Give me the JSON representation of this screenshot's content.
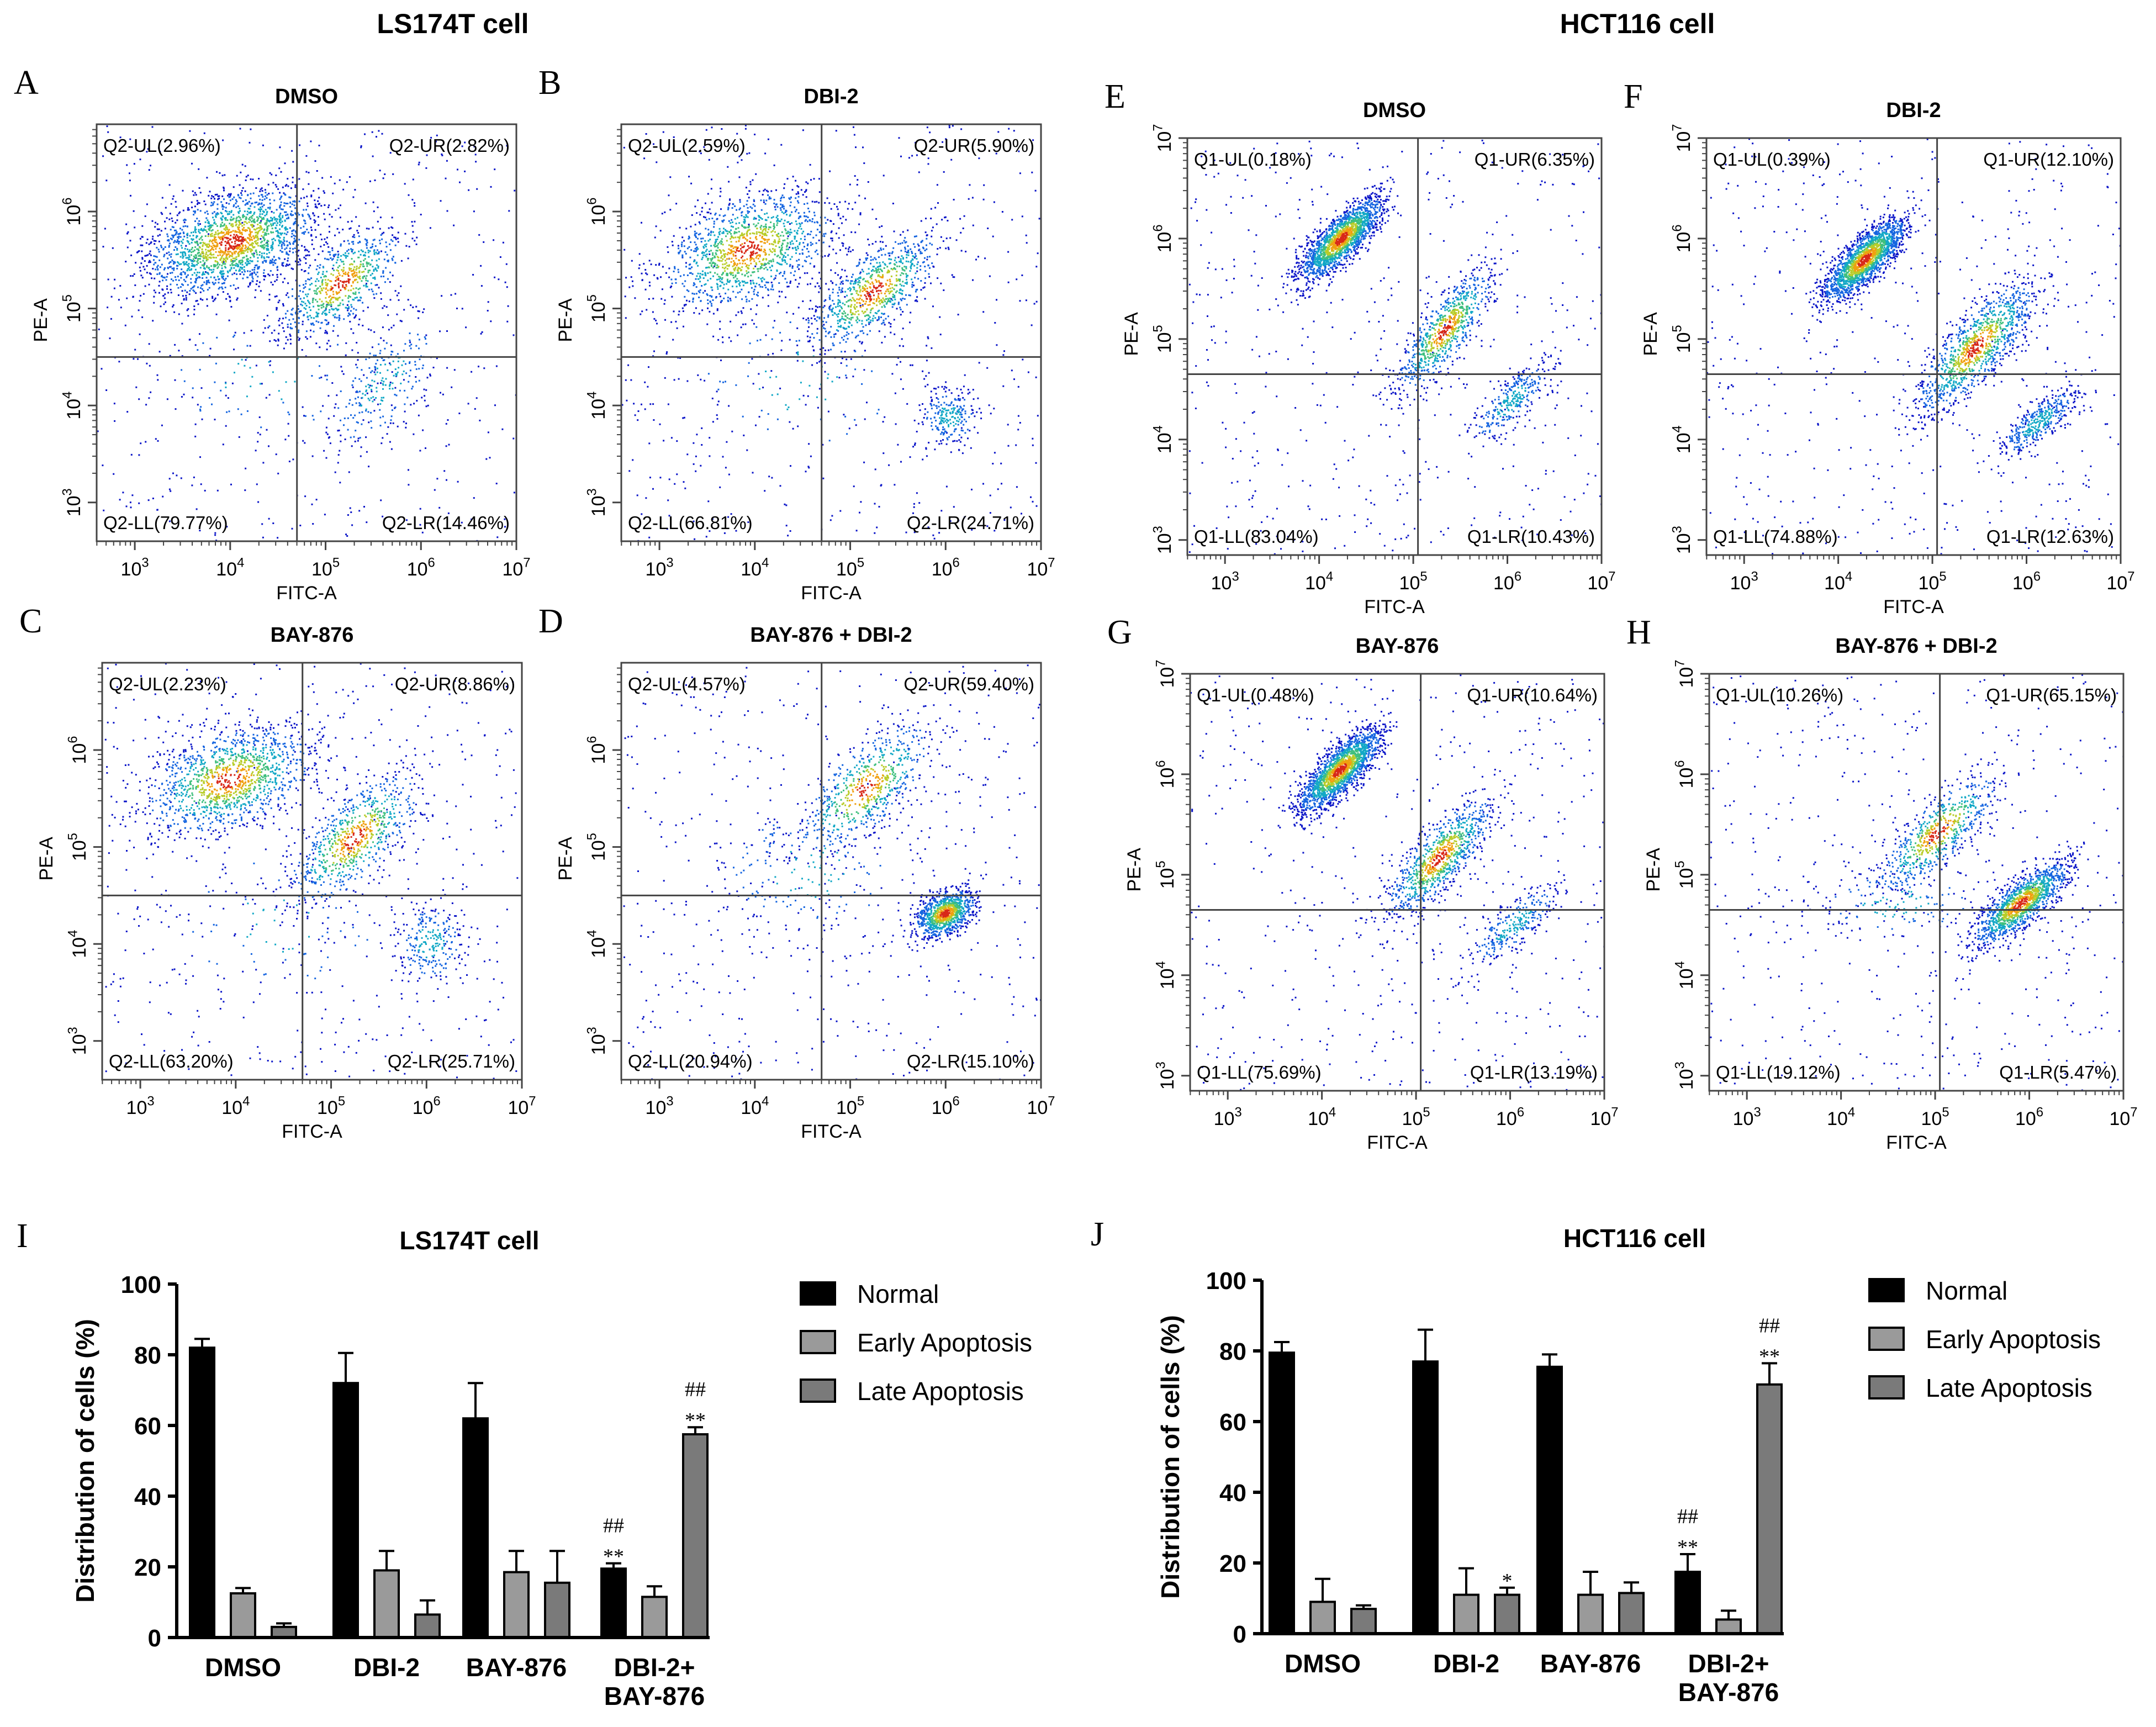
{
  "headers": {
    "left": "LS174T cell",
    "right": "HCT116 cell"
  },
  "axes": {
    "x_label": "FITC-A",
    "y_label": "PE-A",
    "x_ticks": [
      "10^3",
      "10^4",
      "10^5",
      "10^6",
      "10^7"
    ],
    "y_ticks_ls": [
      "10^3",
      "10^4",
      "10^5",
      "10^6"
    ],
    "y_ticks_hct": [
      "10^3",
      "10^4",
      "10^5",
      "10^6",
      "10^7"
    ]
  },
  "colors": {
    "density": [
      "#0a14c8",
      "#1565e0",
      "#12a8c6",
      "#3fbf7e",
      "#b8cc28",
      "#f0a010",
      "#d82818"
    ],
    "bar_normal": "#000000",
    "bar_early": "#9a9a9a",
    "bar_late": "#7a7a7a",
    "frame": "#444444"
  },
  "panels": [
    {
      "letter": "A",
      "title": "DMSO",
      "cell": "LS174T",
      "quadrants": {
        "UL": "Q2-UL(2.96%)",
        "UR": "Q2-UR(2.82%)",
        "LL": "Q2-LL(79.77%)",
        "LR": "Q2-LR(14.46%)"
      },
      "gate_fitc_log10": 4.7,
      "gate_pe_log10": 4.5
    },
    {
      "letter": "B",
      "title": "DBI-2",
      "cell": "LS174T",
      "quadrants": {
        "UL": "Q2-UL(2.59%)",
        "UR": "Q2-UR(5.90%)",
        "LL": "Q2-LL(66.81%)",
        "LR": "Q2-LR(24.71%)"
      },
      "gate_fitc_log10": 4.7,
      "gate_pe_log10": 4.5
    },
    {
      "letter": "C",
      "title": "BAY-876",
      "cell": "LS174T",
      "quadrants": {
        "UL": "Q2-UL(2.23%)",
        "UR": "Q2-UR(8.86%)",
        "LL": "Q2-LL(63.20%)",
        "LR": "Q2-LR(25.71%)"
      },
      "gate_fitc_log10": 4.7,
      "gate_pe_log10": 4.5
    },
    {
      "letter": "D",
      "title": "BAY-876 + DBI-2",
      "cell": "LS174T",
      "quadrants": {
        "UL": "Q2-UL(4.57%)",
        "UR": "Q2-UR(59.40%)",
        "LL": "Q2-LL(20.94%)",
        "LR": "Q2-LR(15.10%)"
      },
      "gate_fitc_log10": 4.7,
      "gate_pe_log10": 4.5
    },
    {
      "letter": "E",
      "title": "DMSO",
      "cell": "HCT116",
      "quadrants": {
        "UL": "Q1-UL(0.18%)",
        "UR": "Q1-UR(6.35%)",
        "LL": "Q1-LL(83.04%)",
        "LR": "Q1-LR(10.43%)"
      },
      "gate_fitc_log10": 5.05,
      "gate_pe_log10": 4.65
    },
    {
      "letter": "F",
      "title": "DBI-2",
      "cell": "HCT116",
      "quadrants": {
        "UL": "Q1-UL(0.39%)",
        "UR": "Q1-UR(12.10%)",
        "LL": "Q1-LL(74.88%)",
        "LR": "Q1-LR(12.63%)"
      },
      "gate_fitc_log10": 5.05,
      "gate_pe_log10": 4.65
    },
    {
      "letter": "G",
      "title": "BAY-876",
      "cell": "HCT116",
      "quadrants": {
        "UL": "Q1-UL(0.48%)",
        "UR": "Q1-UR(10.64%)",
        "LL": "Q1-LL(75.69%)",
        "LR": "Q1-LR(13.19%)"
      },
      "gate_fitc_log10": 5.05,
      "gate_pe_log10": 4.65
    },
    {
      "letter": "H",
      "title": "BAY-876 + DBI-2",
      "cell": "HCT116",
      "quadrants": {
        "UL": "Q1-UL(10.26%)",
        "UR": "Q1-UR(65.15%)",
        "LL": "Q1-LL(19.12%)",
        "LR": "Q1-LR(5.47%)"
      },
      "gate_fitc_log10": 5.05,
      "gate_pe_log10": 4.65
    }
  ],
  "chart_data": [
    {
      "type": "bar",
      "panel_letter": "I",
      "title": "LS174T cell",
      "ylabel": "Distribution of cells (%)",
      "xlabel": "",
      "ylim": [
        0,
        100
      ],
      "yticks": [
        0,
        20,
        40,
        60,
        80,
        100
      ],
      "categories": [
        "DMSO",
        "DBI-2",
        "BAY-876",
        "DBI-2+ BAY-876"
      ],
      "series": [
        {
          "name": "Normal",
          "values": [
            82,
            72,
            62,
            19.5
          ],
          "errors": [
            2.5,
            8.5,
            10,
            1.5
          ]
        },
        {
          "name": "Early Apoptosis",
          "values": [
            12.5,
            19,
            18.5,
            11.5
          ],
          "errors": [
            1.5,
            5.5,
            6,
            3
          ]
        },
        {
          "name": "Late Apoptosis",
          "values": [
            3,
            6.5,
            15.5,
            57.5
          ],
          "errors": [
            1,
            4,
            9,
            2
          ]
        }
      ],
      "annotations": [
        {
          "series": "Normal",
          "category": "DBI-2+ BAY-876",
          "lines": [
            "##",
            "**"
          ]
        },
        {
          "series": "Late Apoptosis",
          "category": "DBI-2+ BAY-876",
          "lines": [
            "##",
            "**"
          ]
        }
      ],
      "legend": "right"
    },
    {
      "type": "bar",
      "panel_letter": "J",
      "title": "HCT116 cell",
      "ylabel": "Distribution of cells (%)",
      "xlabel": "",
      "ylim": [
        0,
        100
      ],
      "yticks": [
        0,
        20,
        40,
        60,
        80,
        100
      ],
      "categories": [
        "DMSO",
        "DBI-2",
        "BAY-876",
        "DBI-2+ BAY-876"
      ],
      "series": [
        {
          "name": "Normal",
          "values": [
            79.5,
            77,
            75.5,
            17.5
          ],
          "errors": [
            3,
            9,
            3.5,
            5
          ]
        },
        {
          "name": "Early Apoptosis",
          "values": [
            9,
            11,
            11,
            4
          ],
          "errors": [
            6.5,
            7.5,
            6.5,
            2.5
          ]
        },
        {
          "name": "Late Apoptosis",
          "values": [
            7,
            11,
            11.5,
            70.5
          ],
          "errors": [
            1,
            2,
            3,
            6
          ]
        }
      ],
      "annotations": [
        {
          "series": "Late Apoptosis",
          "category": "DBI-2",
          "lines": [
            "*"
          ]
        },
        {
          "series": "Normal",
          "category": "DBI-2+ BAY-876",
          "lines": [
            "##",
            "**"
          ]
        },
        {
          "series": "Late Apoptosis",
          "category": "DBI-2+ BAY-876",
          "lines": [
            "##",
            "**"
          ]
        }
      ],
      "legend": "right"
    }
  ]
}
